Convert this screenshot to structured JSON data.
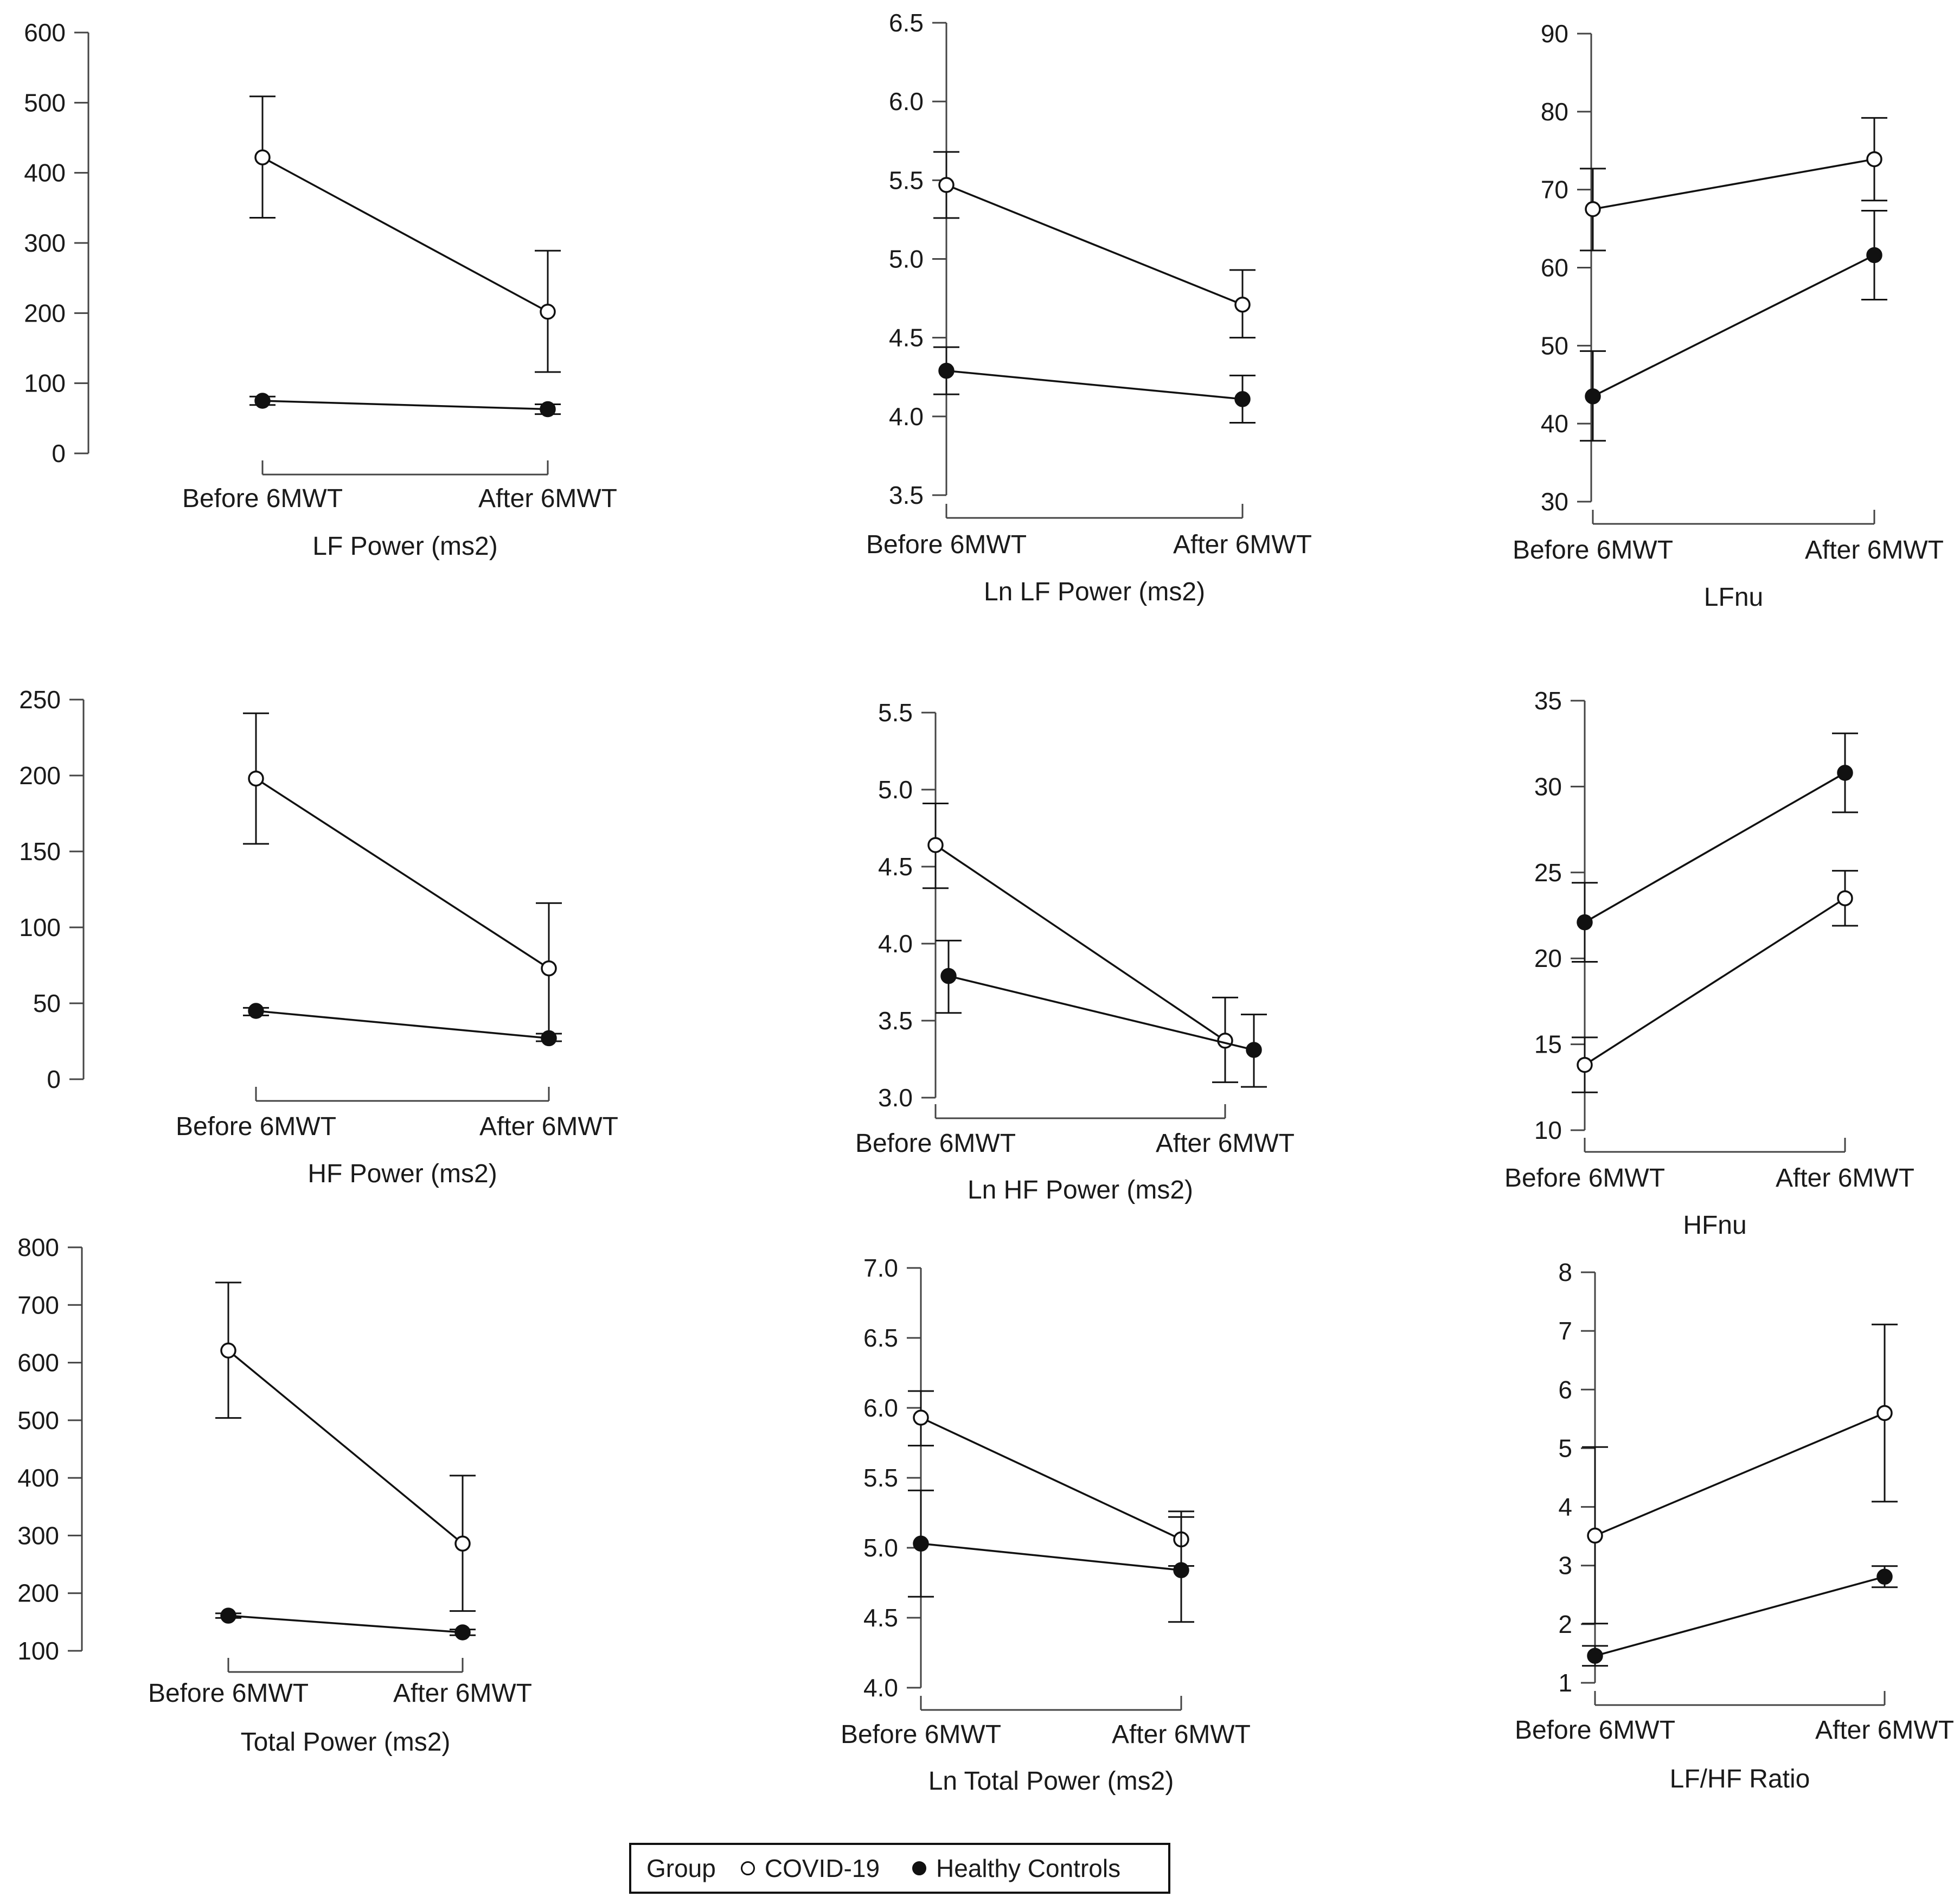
{
  "legend": {
    "title": "Group",
    "items": [
      {
        "label": "COVID-19",
        "marker": "open"
      },
      {
        "label": "Healthy Controls",
        "marker": "filled"
      }
    ]
  },
  "colors": {
    "line": "#111111",
    "axis": "#444444",
    "open_fill": "#ffffff",
    "filled": "#111111"
  },
  "chart_data": [
    {
      "type": "line",
      "xlabel": "LF Power (ms2)",
      "categories": [
        "Before 6MWT",
        "After 6MWT"
      ],
      "ylim": [
        0,
        600
      ],
      "yticks": [
        0,
        100,
        200,
        300,
        400,
        500,
        600
      ],
      "series": [
        {
          "name": "COVID-19",
          "marker": "open",
          "values": [
            422,
            202
          ],
          "lower": [
            336,
            116
          ],
          "upper": [
            509,
            289
          ]
        },
        {
          "name": "Healthy Controls",
          "marker": "filled",
          "values": [
            75,
            63
          ],
          "lower": [
            69,
            56
          ],
          "upper": [
            81,
            70
          ]
        }
      ]
    },
    {
      "type": "line",
      "xlabel": "Ln LF Power (ms2)",
      "categories": [
        "Before 6MWT",
        "After 6MWT"
      ],
      "ylim": [
        3.5,
        6.5
      ],
      "yticks": [
        3.5,
        4.0,
        4.5,
        5.0,
        5.5,
        6.0,
        6.5
      ],
      "series": [
        {
          "name": "COVID-19",
          "marker": "open",
          "values": [
            5.47,
            4.71
          ],
          "lower": [
            5.26,
            4.5
          ],
          "upper": [
            5.68,
            4.93
          ]
        },
        {
          "name": "Healthy Controls",
          "marker": "filled",
          "values": [
            4.29,
            4.11
          ],
          "lower": [
            4.14,
            3.96
          ],
          "upper": [
            4.44,
            4.26
          ]
        }
      ]
    },
    {
      "type": "line",
      "xlabel": "LFnu",
      "categories": [
        "Before 6MWT",
        "After 6MWT"
      ],
      "ylim": [
        30,
        90
      ],
      "yticks": [
        30,
        40,
        50,
        60,
        70,
        80,
        90
      ],
      "series": [
        {
          "name": "COVID-19",
          "marker": "open",
          "values": [
            67.5,
            73.9
          ],
          "lower": [
            62.2,
            68.6
          ],
          "upper": [
            72.7,
            79.2
          ]
        },
        {
          "name": "Healthy Controls",
          "marker": "filled",
          "values": [
            43.5,
            61.6
          ],
          "lower": [
            37.8,
            55.9
          ],
          "upper": [
            49.3,
            67.3
          ]
        }
      ]
    },
    {
      "type": "line",
      "xlabel": "HF Power (ms2)",
      "categories": [
        "Before 6MWT",
        "After 6MWT"
      ],
      "ylim": [
        0,
        250
      ],
      "yticks": [
        0,
        50,
        100,
        150,
        200,
        250
      ],
      "series": [
        {
          "name": "COVID-19",
          "marker": "open",
          "values": [
            198,
            73
          ],
          "lower": [
            155,
            30
          ],
          "upper": [
            241,
            116
          ]
        },
        {
          "name": "Healthy Controls",
          "marker": "filled",
          "values": [
            45,
            27
          ],
          "lower": [
            42,
            25
          ],
          "upper": [
            47,
            30
          ]
        }
      ]
    },
    {
      "type": "line",
      "xlabel": "Ln HF Power (ms2)",
      "categories": [
        "Before 6MWT",
        "After 6MWT"
      ],
      "ylim": [
        3.0,
        5.5
      ],
      "yticks": [
        3.0,
        3.5,
        4.0,
        4.5,
        5.0,
        5.5
      ],
      "series": [
        {
          "name": "COVID-19",
          "marker": "open",
          "values": [
            4.64,
            3.37
          ],
          "lower": [
            4.36,
            3.1
          ],
          "upper": [
            4.91,
            3.65
          ]
        },
        {
          "name": "Healthy Controls",
          "marker": "filled",
          "values": [
            3.79,
            3.31
          ],
          "lower": [
            3.55,
            3.07
          ],
          "upper": [
            4.02,
            3.54
          ]
        }
      ]
    },
    {
      "type": "line",
      "xlabel": "HFnu",
      "categories": [
        "Before 6MWT",
        "After 6MWT"
      ],
      "ylim": [
        10,
        35
      ],
      "yticks": [
        10,
        15,
        20,
        25,
        30,
        35
      ],
      "series": [
        {
          "name": "COVID-19",
          "marker": "open",
          "values": [
            13.8,
            23.5
          ],
          "lower": [
            12.2,
            21.9
          ],
          "upper": [
            15.4,
            25.1
          ]
        },
        {
          "name": "Healthy Controls",
          "marker": "filled",
          "values": [
            22.1,
            30.8
          ],
          "lower": [
            19.8,
            28.5
          ],
          "upper": [
            24.4,
            33.1
          ]
        }
      ]
    },
    {
      "type": "line",
      "xlabel": "Total Power (ms2)",
      "categories": [
        "Before 6MWT",
        "After 6MWT"
      ],
      "ylim": [
        100,
        800
      ],
      "yticks": [
        100,
        200,
        300,
        400,
        500,
        600,
        700,
        800
      ],
      "series": [
        {
          "name": "COVID-19",
          "marker": "open",
          "values": [
            621,
            286
          ],
          "lower": [
            504,
            169
          ],
          "upper": [
            739,
            404
          ]
        },
        {
          "name": "Healthy Controls",
          "marker": "filled",
          "values": [
            161,
            132
          ],
          "lower": [
            157,
            127
          ],
          "upper": [
            165,
            137
          ]
        }
      ]
    },
    {
      "type": "line",
      "xlabel": "Ln Total Power (ms2)",
      "categories": [
        "Before 6MWT",
        "After 6MWT"
      ],
      "ylim": [
        4.0,
        7.0
      ],
      "yticks": [
        4.0,
        4.5,
        5.0,
        5.5,
        6.0,
        6.5,
        7.0
      ],
      "series": [
        {
          "name": "COVID-19",
          "marker": "open",
          "values": [
            5.93,
            5.06
          ],
          "lower": [
            5.73,
            4.87
          ],
          "upper": [
            6.12,
            5.26
          ]
        },
        {
          "name": "Healthy Controls",
          "marker": "filled",
          "values": [
            5.03,
            4.84
          ],
          "lower": [
            4.65,
            4.47
          ],
          "upper": [
            5.41,
            5.22
          ]
        }
      ]
    },
    {
      "type": "line",
      "xlabel": "LF/HF Ratio",
      "categories": [
        "Before 6MWT",
        "After 6MWT"
      ],
      "ylim": [
        1,
        8
      ],
      "yticks": [
        1,
        2,
        3,
        4,
        5,
        6,
        7,
        8
      ],
      "series": [
        {
          "name": "COVID-19",
          "marker": "open",
          "values": [
            3.51,
            5.6
          ],
          "lower": [
            2.01,
            4.09
          ],
          "upper": [
            5.02,
            7.11
          ]
        },
        {
          "name": "Healthy Controls",
          "marker": "filled",
          "values": [
            1.46,
            2.81
          ],
          "lower": [
            1.29,
            2.63
          ],
          "upper": [
            1.63,
            2.99
          ]
        }
      ]
    }
  ]
}
